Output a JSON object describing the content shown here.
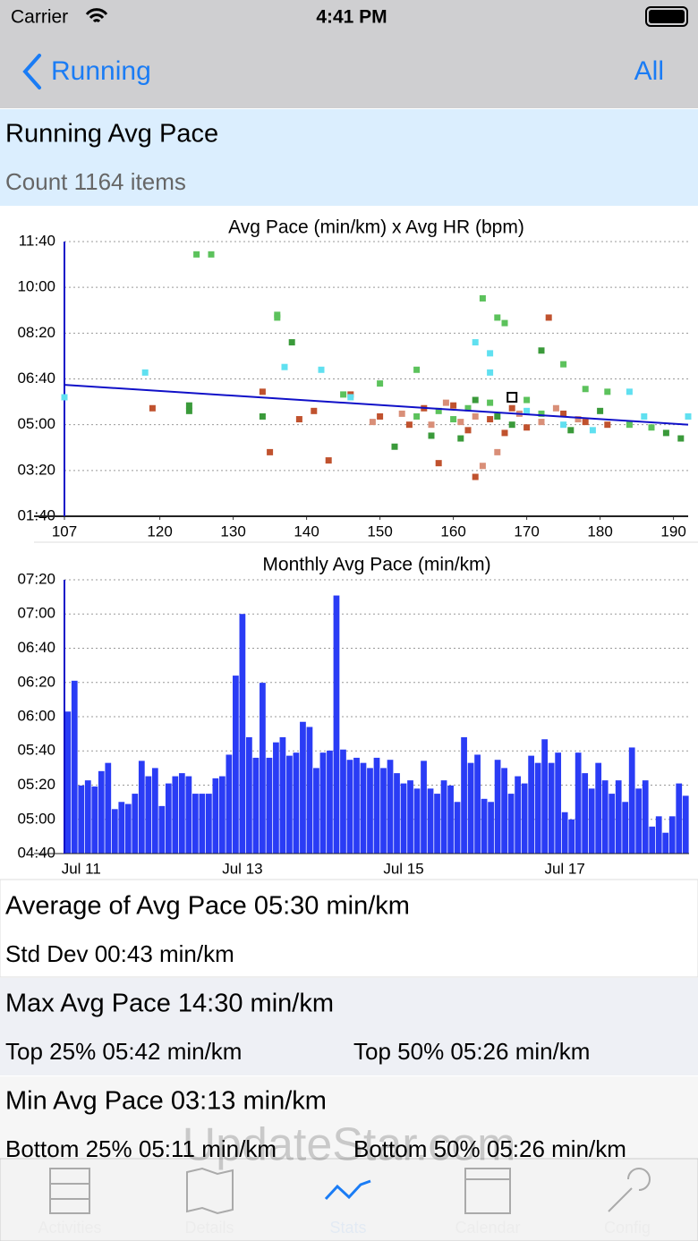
{
  "status_bar": {
    "carrier": "Carrier",
    "time": "4:41 PM"
  },
  "nav": {
    "back": "Running",
    "right": "All"
  },
  "header": {
    "title": "Running Avg Pace",
    "subtitle": "Count 1164 items"
  },
  "chart_data": [
    {
      "type": "scatter",
      "title": "Avg Pace (min/km) x Avg HR (bpm)",
      "xlim": [
        107,
        192
      ],
      "xticks": [
        107,
        120,
        130,
        140,
        150,
        160,
        170,
        180,
        190
      ],
      "ylim": [
        1.667,
        11.667
      ],
      "yticks": [
        {
          "value": 1.667,
          "label": "01:40"
        },
        {
          "value": 3.333,
          "label": "03:20"
        },
        {
          "value": 5,
          "label": "05:00"
        },
        {
          "value": 6.667,
          "label": "06:40"
        },
        {
          "value": 8.333,
          "label": "08:20"
        },
        {
          "value": 10,
          "label": "10:00"
        },
        {
          "value": 11.667,
          "label": "11:40"
        }
      ],
      "grid": true,
      "series": [
        {
          "color": "#5cc25c",
          "x": [
            125,
            127,
            136,
            136,
            150,
            155,
            158,
            160,
            162,
            164,
            166,
            167,
            172,
            175,
            178,
            181,
            184,
            187,
            165,
            170,
            155,
            145
          ],
          "values": [
            11.2,
            11.2,
            9.0,
            8.9,
            6.5,
            7.0,
            5.5,
            5.2,
            5.6,
            9.6,
            8.9,
            8.7,
            5.4,
            7.2,
            6.3,
            6.2,
            5.0,
            4.9,
            5.8,
            5.9,
            5.3,
            6.1
          ]
        },
        {
          "color": "#3a9a3a",
          "x": [
            124,
            124,
            134,
            138,
            152,
            157,
            161,
            166,
            172,
            176,
            180,
            189,
            191,
            163,
            168
          ],
          "values": [
            5.7,
            5.5,
            5.3,
            8.0,
            4.2,
            4.6,
            4.5,
            5.3,
            7.7,
            4.8,
            5.5,
            4.7,
            4.5,
            5.9,
            5.0
          ]
        },
        {
          "color": "#c0522e",
          "x": [
            119,
            134,
            139,
            141,
            143,
            146,
            150,
            154,
            158,
            160,
            163,
            165,
            168,
            170,
            173,
            175,
            178,
            181,
            156,
            162,
            167,
            135
          ],
          "values": [
            5.6,
            6.2,
            5.2,
            5.5,
            3.7,
            6.1,
            5.3,
            5.0,
            3.6,
            5.7,
            3.1,
            5.2,
            5.6,
            4.9,
            8.9,
            5.4,
            5.1,
            5.0,
            5.6,
            4.8,
            4.7,
            4.0
          ]
        },
        {
          "color": "#d98f78",
          "x": [
            149,
            153,
            159,
            161,
            164,
            166,
            169,
            172,
            174,
            177,
            157,
            163
          ],
          "values": [
            5.1,
            5.4,
            5.8,
            5.1,
            3.5,
            4.0,
            5.4,
            5.1,
            5.6,
            5.2,
            5.0,
            5.3
          ]
        },
        {
          "color": "#60e0f0",
          "x": [
            107,
            118,
            137,
            142,
            146,
            163,
            165,
            170,
            175,
            184,
            186,
            192,
            165,
            179
          ],
          "values": [
            6.0,
            6.9,
            7.1,
            7.0,
            6.0,
            8.0,
            7.6,
            5.5,
            5.0,
            6.2,
            5.3,
            5.3,
            6.9,
            4.8
          ]
        }
      ],
      "selected": {
        "x": 168,
        "value": 6.0
      },
      "trend": {
        "color": "#1010c8",
        "x": [
          107,
          192
        ],
        "values": [
          6.45,
          5.0
        ]
      }
    },
    {
      "type": "bar",
      "title": "Monthly Avg Pace (min/km)",
      "color": "#2a3cf5",
      "ylim": [
        4.667,
        7.333
      ],
      "yticks": [
        {
          "value": 4.667,
          "label": "04:40"
        },
        {
          "value": 5,
          "label": "05:00"
        },
        {
          "value": 5.333,
          "label": "05:20"
        },
        {
          "value": 5.667,
          "label": "05:40"
        },
        {
          "value": 6,
          "label": "06:00"
        },
        {
          "value": 6.333,
          "label": "06:20"
        },
        {
          "value": 6.667,
          "label": "06:40"
        },
        {
          "value": 7,
          "label": "07:00"
        },
        {
          "value": 7.333,
          "label": "07:20"
        }
      ],
      "grid": true,
      "categories": [
        null,
        null,
        "Jul 11",
        null,
        null,
        null,
        null,
        null,
        null,
        null,
        null,
        null,
        null,
        null,
        null,
        null,
        null,
        null,
        null,
        null,
        null,
        null,
        null,
        null,
        null,
        null,
        "Jul 13",
        null,
        null,
        null,
        null,
        null,
        null,
        null,
        null,
        null,
        null,
        null,
        null,
        null,
        null,
        null,
        null,
        null,
        null,
        null,
        null,
        null,
        null,
        null,
        "Jul 15",
        null,
        null,
        null,
        null,
        null,
        null,
        null,
        null,
        null,
        null,
        null,
        null,
        null,
        null,
        null,
        null,
        null,
        null,
        null,
        null,
        null,
        null,
        null,
        "Jul 17",
        null,
        null,
        null,
        null,
        null,
        null,
        null,
        null,
        null,
        null,
        null,
        null,
        null,
        null,
        null,
        null,
        null,
        null
      ],
      "values": [
        6.05,
        6.35,
        5.33,
        5.38,
        5.32,
        5.47,
        5.55,
        5.1,
        5.17,
        5.15,
        5.25,
        5.57,
        5.42,
        5.5,
        5.13,
        5.35,
        5.42,
        5.45,
        5.42,
        5.25,
        5.25,
        5.25,
        5.4,
        5.42,
        5.63,
        6.4,
        7.0,
        5.8,
        5.6,
        6.33,
        5.6,
        5.75,
        5.8,
        5.62,
        5.65,
        5.95,
        5.9,
        5.5,
        5.65,
        5.67,
        7.18,
        5.68,
        5.58,
        5.6,
        5.55,
        5.5,
        5.6,
        5.5,
        5.58,
        5.45,
        5.35,
        5.38,
        5.3,
        5.57,
        5.3,
        5.25,
        5.38,
        5.33,
        5.17,
        5.8,
        5.55,
        5.63,
        5.2,
        5.17,
        5.58,
        5.5,
        5.25,
        5.42,
        5.35,
        5.62,
        5.55,
        5.78,
        5.55,
        5.65,
        5.07,
        5.0,
        5.65,
        5.45,
        5.3,
        5.55,
        5.38,
        5.25,
        5.38,
        5.17,
        5.7,
        5.3,
        5.38,
        4.93,
        5.03,
        4.87,
        5.03,
        5.35,
        5.23
      ]
    }
  ],
  "stats": {
    "average": "Average of Avg Pace 05:30 min/km",
    "std_dev": "Std Dev 00:43 min/km",
    "max": "Max Avg Pace 14:30 min/km",
    "top25": "Top 25% 05:42 min/km",
    "top50": "Top 50% 05:26 min/km",
    "min": "Min Avg Pace 03:13 min/km",
    "bottom25": "Bottom 25% 05:11 min/km",
    "bottom50": "Bottom 50% 05:26 min/km"
  },
  "watermark": "UpdateStar.com",
  "tabs": [
    "Activities",
    "Details",
    "Stats",
    "Calendar",
    "Config"
  ]
}
